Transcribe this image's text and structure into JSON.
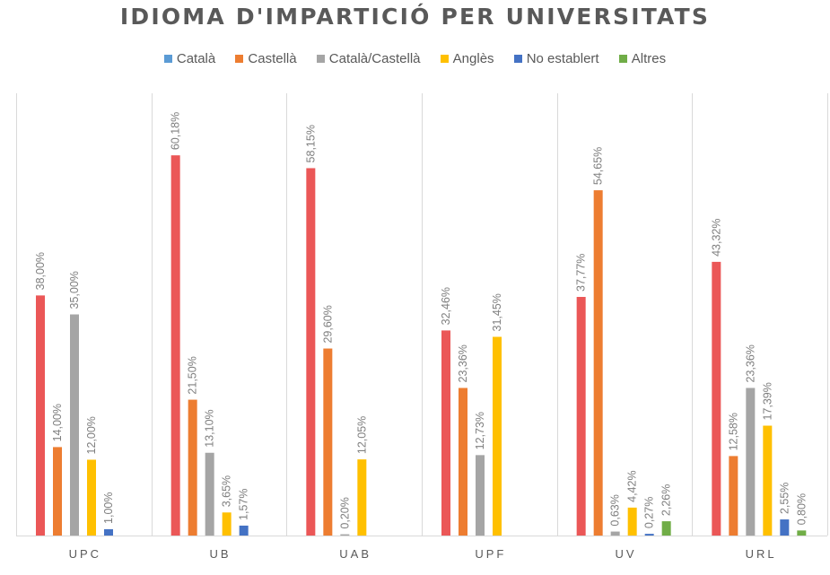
{
  "chart_data": {
    "type": "bar",
    "title": "IDIOMA D'IMPARTICIÓ PER UNIVERSITATS",
    "xlabel": "",
    "ylabel": "",
    "ylim": [
      0,
      70
    ],
    "grid": false,
    "legend_position": "top-center",
    "categories": [
      "UPC",
      "UB",
      "UAB",
      "UPF",
      "UV",
      "URL"
    ],
    "legend": [
      {
        "name": "Català",
        "color": "#5B9BD5"
      },
      {
        "name": "Castellà",
        "color": "#ED7D31"
      },
      {
        "name": "Català/Castellà",
        "color": "#A5A5A5"
      },
      {
        "name": "Anglès",
        "color": "#FFC000"
      },
      {
        "name": "No establert",
        "color": "#4472C4"
      },
      {
        "name": "Altres",
        "color": "#70AD47"
      }
    ],
    "series": [
      {
        "name": "Català",
        "color": "#EB5757",
        "values": [
          38.0,
          60.18,
          58.15,
          32.46,
          37.77,
          43.32
        ],
        "labels": [
          "38,00%",
          "60,18%",
          "58,15%",
          "32,46%",
          "37,77%",
          "43,32%"
        ]
      },
      {
        "name": "Castellà",
        "color": "#ED7D31",
        "values": [
          14.0,
          21.5,
          29.6,
          23.36,
          54.65,
          12.58
        ],
        "labels": [
          "14,00%",
          "21,50%",
          "29,60%",
          "23,36%",
          "54,65%",
          "12,58%"
        ]
      },
      {
        "name": "Català/Castellà",
        "color": "#A5A5A5",
        "values": [
          35.0,
          13.1,
          0.2,
          12.73,
          0.63,
          23.36
        ],
        "labels": [
          "35,00%",
          "13,10%",
          "0,20%",
          "12,73%",
          "0,63%",
          "23,36%"
        ]
      },
      {
        "name": "Anglès",
        "color": "#FFC000",
        "values": [
          12.0,
          3.65,
          12.05,
          31.45,
          4.42,
          17.39
        ],
        "labels": [
          "12,00%",
          "3,65%",
          "12,05%",
          "31,45%",
          "4,42%",
          "17,39%"
        ]
      },
      {
        "name": "No establert",
        "color": "#4472C4",
        "values": [
          1.0,
          1.57,
          null,
          null,
          0.27,
          2.55
        ],
        "labels": [
          "1,00%",
          "1,57%",
          null,
          null,
          "0,27%",
          "2,55%"
        ]
      },
      {
        "name": "Altres",
        "color": "#70AD47",
        "values": [
          null,
          null,
          null,
          null,
          2.26,
          0.8
        ],
        "labels": [
          null,
          null,
          null,
          null,
          "2,26%",
          "0,80%"
        ]
      }
    ]
  }
}
